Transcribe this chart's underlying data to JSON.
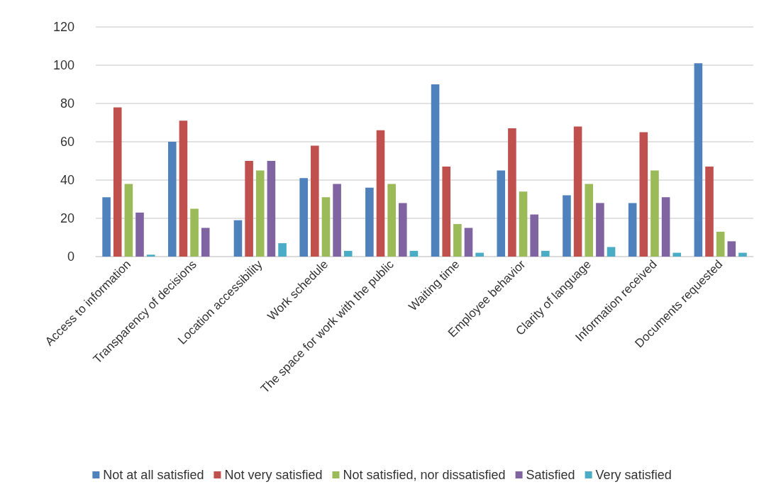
{
  "chart_data": {
    "type": "bar",
    "categories": [
      "Access to information",
      "Transparency of decisions",
      "Location accessibility",
      "Work schedule",
      "The space for work with the public",
      "Waiting time",
      "Employee behavior",
      "Clarity of language",
      "Information received",
      "Documents requested"
    ],
    "series": [
      {
        "name": "Not at all satisfied",
        "color": "#4f81bd",
        "values": [
          31,
          60,
          19,
          41,
          36,
          90,
          45,
          32,
          28,
          101
        ]
      },
      {
        "name": "Not very satisfied",
        "color": "#c0504d",
        "values": [
          78,
          71,
          50,
          58,
          66,
          47,
          67,
          68,
          65,
          47
        ]
      },
      {
        "name": "Not satisfied, nor dissatisfied",
        "color": "#9bbb59",
        "values": [
          38,
          25,
          45,
          31,
          38,
          17,
          34,
          38,
          45,
          13
        ]
      },
      {
        "name": "Satisfied",
        "color": "#8064a2",
        "values": [
          23,
          15,
          50,
          38,
          28,
          15,
          22,
          28,
          31,
          8
        ]
      },
      {
        "name": "Very satisfied",
        "color": "#4bacc6",
        "values": [
          1,
          0,
          7,
          3,
          3,
          2,
          3,
          5,
          2,
          2
        ]
      }
    ],
    "ylim": [
      0,
      120
    ],
    "yticks": [
      0,
      20,
      40,
      60,
      80,
      100,
      120
    ],
    "grid": "y",
    "legend": "bottom"
  }
}
